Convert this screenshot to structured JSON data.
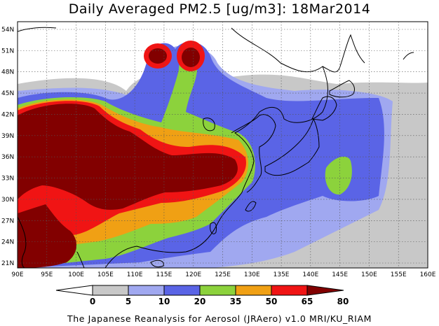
{
  "title": "Daily Averaged PM2.5 [ug/m3]: 18Mar2014",
  "footer": "The Japanese Reanalysis for Aerosol (JRAero) v1.0 MRI/KU_RIAM",
  "axes": {
    "lon_labels": [
      "90E",
      "95E",
      "100E",
      "105E",
      "110E",
      "115E",
      "120E",
      "125E",
      "130E",
      "135E",
      "140E",
      "145E",
      "150E",
      "155E",
      "160E"
    ],
    "lat_labels": [
      "21N",
      "24N",
      "27N",
      "30N",
      "33N",
      "36N",
      "39N",
      "42N",
      "45N",
      "48N",
      "51N",
      "54N"
    ]
  },
  "colorbar": {
    "labels": [
      "0",
      "5",
      "10",
      "20",
      "35",
      "50",
      "65",
      "80"
    ],
    "colors": [
      "#ffffff",
      "#c8c8c8",
      "#a0a8f0",
      "#5a64e6",
      "#8cd23c",
      "#f0a014",
      "#f01414",
      "#820000"
    ]
  },
  "palette": {
    "ocean_gray": "#c8c8c8",
    "light_blue": "#a0a8f0",
    "blue": "#5a64e6",
    "green": "#8cd23c",
    "orange": "#f0a014",
    "red": "#f01414",
    "darkred": "#820000"
  }
}
